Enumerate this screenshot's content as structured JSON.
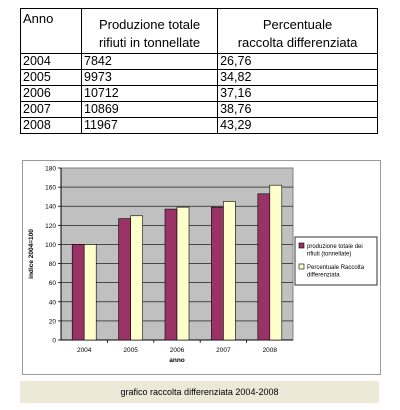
{
  "table": {
    "headers": {
      "year": "Anno",
      "production_line1": "Produzione totale",
      "production_line2": "rifiuti in tonnellate",
      "percentage_line1": "Percentuale",
      "percentage_line2": "raccolta differenziata"
    },
    "rows": [
      {
        "year": "2004",
        "production": "7842",
        "percentage": "26,76"
      },
      {
        "year": "2005",
        "production": "9973",
        "percentage": "34,82"
      },
      {
        "year": "2006",
        "production": "10712",
        "percentage": "37,16"
      },
      {
        "year": "2007",
        "production": "10869",
        "percentage": "38,76"
      },
      {
        "year": "2008",
        "production": "11967",
        "percentage": "43,29"
      }
    ]
  },
  "chart_data": {
    "type": "bar",
    "categories": [
      "2004",
      "2005",
      "2006",
      "2007",
      "2008"
    ],
    "series": [
      {
        "name": "produzione totale dei rifiuti (tonnellate)",
        "values": [
          100,
          127,
          137,
          139,
          153
        ],
        "color": "#993366"
      },
      {
        "name": "Percentuale Raccolta differenziata",
        "values": [
          100,
          130,
          139,
          145,
          162
        ],
        "color": "#ffffcc"
      }
    ],
    "xlabel": "anno",
    "ylabel": "indice 2004=100",
    "ylim": [
      0,
      180
    ],
    "yticks": [
      "0",
      "20",
      "40",
      "60",
      "80",
      "100",
      "120",
      "140",
      "160",
      "180"
    ],
    "grid": true,
    "plot_background": "#c0c0c0",
    "legend": "right"
  },
  "caption": "grafico raccolta differenziata 2004-2008"
}
